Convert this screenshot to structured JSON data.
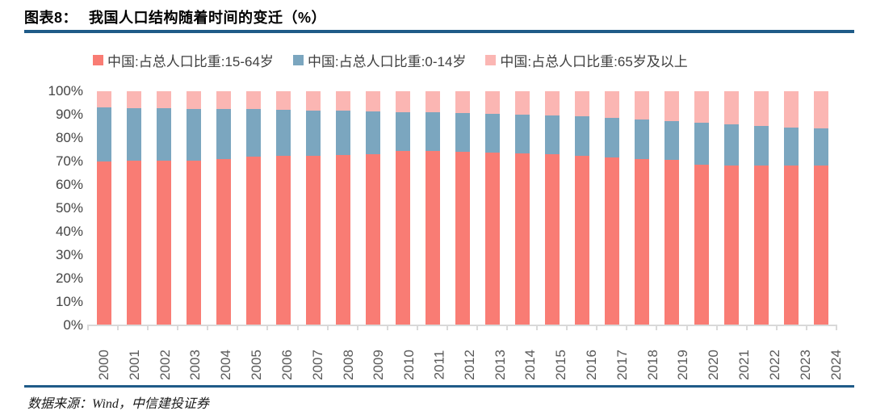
{
  "figure": {
    "title_prefix": "图表8：",
    "title_text": "我国人口结构随着时间的变迁（%）",
    "source": "数据来源：Wind，中信建投证券",
    "accent_line_color": "#1F5B88"
  },
  "chart_data": {
    "type": "bar",
    "stacked": true,
    "grid": false,
    "legend_position": "top",
    "ylim": [
      0,
      100
    ],
    "y_ticks": [
      "100%",
      "90%",
      "80%",
      "70%",
      "60%",
      "50%",
      "40%",
      "30%",
      "20%",
      "10%",
      "0%"
    ],
    "categories": [
      "2000",
      "2001",
      "2002",
      "2003",
      "2004",
      "2005",
      "2006",
      "2007",
      "2008",
      "2009",
      "2010",
      "2011",
      "2012",
      "2013",
      "2014",
      "2015",
      "2016",
      "2017",
      "2018",
      "2019",
      "2020",
      "2021",
      "2022",
      "2023",
      "2024"
    ],
    "series": [
      {
        "name": "中国:占总人口比重:15-64岁",
        "color": "#F97C74",
        "values": [
          70.1,
          70.4,
          70.3,
          70.4,
          70.9,
          72.0,
          72.3,
          72.5,
          72.7,
          73.0,
          74.5,
          74.4,
          74.1,
          73.9,
          73.4,
          73.0,
          72.5,
          71.8,
          71.2,
          70.6,
          68.6,
          68.3,
          68.2,
          68.3,
          68.2
        ]
      },
      {
        "name": "中国:占总人口比重:0-14岁",
        "color": "#7BA6BF",
        "values": [
          22.9,
          22.5,
          22.4,
          22.1,
          21.5,
          20.3,
          19.8,
          19.4,
          19.0,
          18.5,
          16.6,
          16.5,
          16.5,
          16.4,
          16.5,
          16.5,
          16.7,
          16.8,
          16.9,
          16.8,
          17.9,
          17.5,
          16.9,
          16.3,
          16.1
        ]
      },
      {
        "name": "中国:占总人口比重:65岁及以上",
        "color": "#FBB6B3",
        "values": [
          7.0,
          7.1,
          7.3,
          7.5,
          7.6,
          7.7,
          7.9,
          8.1,
          8.3,
          8.5,
          8.9,
          9.1,
          9.4,
          9.7,
          10.1,
          10.5,
          10.8,
          11.4,
          11.9,
          12.6,
          13.5,
          14.2,
          14.9,
          15.4,
          15.7
        ]
      }
    ]
  }
}
